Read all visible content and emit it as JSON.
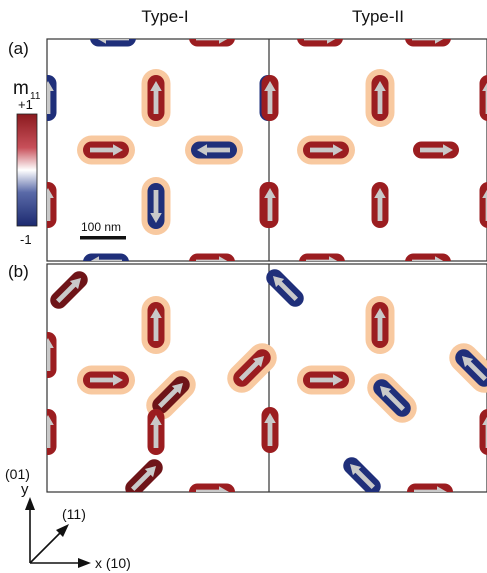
{
  "columns": {
    "left": "Type-I",
    "right": "Type-II"
  },
  "rows": {
    "top": "(a)",
    "bottom": "(b)"
  },
  "colorbar": {
    "symbol": "m",
    "subscript": "11",
    "max_label": "+1",
    "min_label": "-1",
    "colors": {
      "positive": "#9b1d20",
      "mid": "#ffffff",
      "negative": "#1f2f7a"
    }
  },
  "scalebar": {
    "label": "100 nm"
  },
  "axes": {
    "y_label": "y",
    "y_direction": "(01)",
    "diag_label": "(11)",
    "x_label": "x (10)"
  },
  "colors": {
    "halo": "#f8c9a0",
    "arrow": "#c9c9c9",
    "frame": "#333333",
    "red": "#9b1d20",
    "blue": "#1f2f7a",
    "dark_red": "#6e1418"
  }
}
